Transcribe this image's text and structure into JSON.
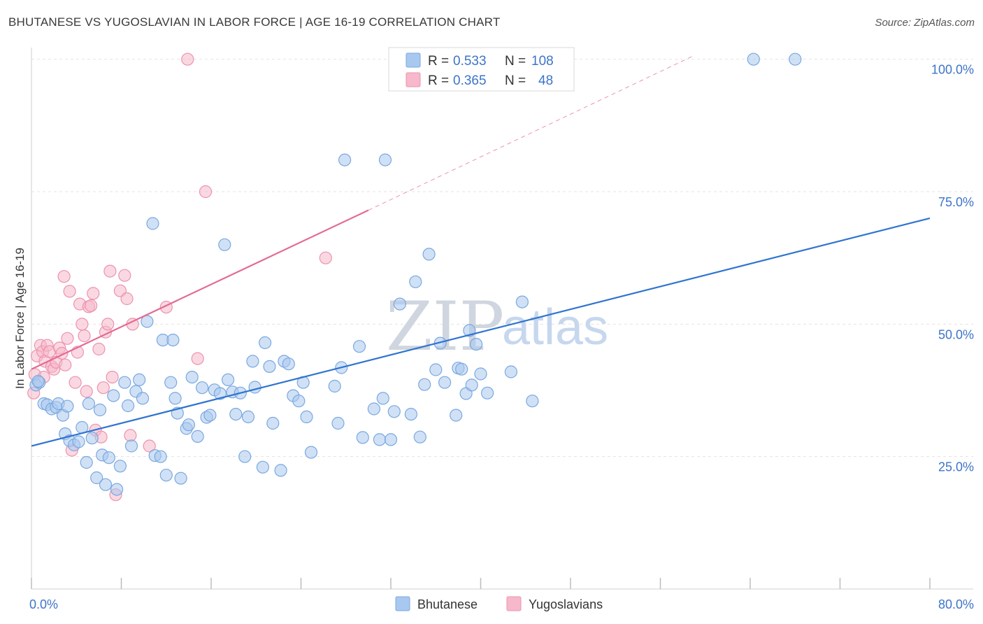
{
  "header": {
    "title": "BHUTANESE VS YUGOSLAVIAN IN LABOR FORCE | AGE 16-19 CORRELATION CHART",
    "source": "Source: ZipAtlas.com"
  },
  "watermark": {
    "zip": "ZIP",
    "atlas": "atlas"
  },
  "colors": {
    "blue_fill": "#a9c8ef",
    "blue_stroke": "#7aa8e0",
    "blue_line": "#2f74d0",
    "pink_fill": "#f6b8ca",
    "pink_stroke": "#ec93ad",
    "pink_line": "#e46b91",
    "tick_text": "#3d74c8",
    "grid": "#e3e3e3"
  },
  "legend": {
    "rows": [
      {
        "series": "Bhutanese",
        "r_label": "R =",
        "r_value": "0.533",
        "n_label": "N =",
        "n_value": "108"
      },
      {
        "series": "Yugoslavians",
        "r_label": "R =",
        "r_value": "0.365",
        "n_label": "N =",
        "n_value": "48"
      }
    ]
  },
  "chart_data": {
    "type": "scatter",
    "title": "BHUTANESE VS YUGOSLAVIAN IN LABOR FORCE | AGE 16-19 CORRELATION CHART",
    "xlabel": "",
    "ylabel": "In Labor Force | Age 16-19",
    "xlim": [
      0,
      80
    ],
    "ylim": [
      0,
      103
    ],
    "x_tick_labels": [
      {
        "value": 0,
        "label": "0.0%"
      },
      {
        "value": 80,
        "label": "80.0%"
      }
    ],
    "y_tick_labels": [
      {
        "value": 25,
        "label": "25.0%"
      },
      {
        "value": 50,
        "label": "50.0%"
      },
      {
        "value": 75,
        "label": "75.0%"
      },
      {
        "value": 100,
        "label": "100.0%"
      }
    ],
    "x_ticks": [
      0,
      8,
      16,
      24,
      32,
      40,
      48,
      56,
      64,
      72,
      80
    ],
    "y_grid": [
      25,
      50,
      75,
      100
    ],
    "legend_position": "bottom-center",
    "series": [
      {
        "name": "Bhutanese",
        "color": "#a9c8ef",
        "r": 0.533,
        "n": 108,
        "trend": {
          "x0": 0,
          "y0": 27,
          "x1": 80,
          "y1": 70
        },
        "points": [
          [
            0.4,
            38.5
          ],
          [
            0.7,
            39.0
          ],
          [
            1.1,
            35.0
          ],
          [
            1.4,
            34.8
          ],
          [
            1.8,
            34.0
          ],
          [
            2.2,
            34.3
          ],
          [
            2.4,
            35.0
          ],
          [
            2.8,
            32.8
          ],
          [
            3.0,
            29.3
          ],
          [
            3.4,
            28.0
          ],
          [
            3.8,
            27.2
          ],
          [
            4.2,
            27.8
          ],
          [
            4.5,
            30.5
          ],
          [
            4.9,
            23.9
          ],
          [
            5.1,
            35.0
          ],
          [
            5.4,
            28.5
          ],
          [
            5.8,
            21.0
          ],
          [
            6.1,
            33.8
          ],
          [
            6.3,
            25.3
          ],
          [
            6.6,
            19.7
          ],
          [
            6.9,
            24.8
          ],
          [
            7.3,
            36.5
          ],
          [
            7.6,
            18.8
          ],
          [
            7.9,
            23.2
          ],
          [
            8.3,
            39.0
          ],
          [
            8.6,
            34.6
          ],
          [
            8.9,
            27.0
          ],
          [
            9.3,
            37.3
          ],
          [
            9.6,
            39.5
          ],
          [
            9.9,
            36.0
          ],
          [
            10.3,
            50.5
          ],
          [
            10.8,
            69.0
          ],
          [
            11.0,
            25.2
          ],
          [
            11.5,
            25.0
          ],
          [
            11.7,
            47.0
          ],
          [
            12.0,
            21.5
          ],
          [
            12.4,
            39.0
          ],
          [
            12.8,
            36.0
          ],
          [
            13.0,
            33.2
          ],
          [
            13.3,
            20.9
          ],
          [
            13.8,
            30.3
          ],
          [
            14.0,
            31.0
          ],
          [
            14.3,
            40.0
          ],
          [
            14.8,
            28.8
          ],
          [
            15.2,
            38.0
          ],
          [
            15.6,
            32.4
          ],
          [
            15.9,
            32.8
          ],
          [
            16.3,
            37.6
          ],
          [
            16.8,
            36.9
          ],
          [
            17.2,
            65.0
          ],
          [
            17.5,
            39.5
          ],
          [
            17.9,
            37.2
          ],
          [
            18.2,
            33.0
          ],
          [
            18.6,
            37.0
          ],
          [
            19.0,
            25.0
          ],
          [
            19.3,
            32.5
          ],
          [
            19.7,
            43.0
          ],
          [
            19.9,
            38.1
          ],
          [
            20.6,
            23.0
          ],
          [
            20.8,
            46.5
          ],
          [
            21.2,
            42.0
          ],
          [
            21.5,
            31.3
          ],
          [
            22.2,
            22.4
          ],
          [
            22.5,
            43.0
          ],
          [
            22.9,
            42.5
          ],
          [
            23.3,
            36.5
          ],
          [
            23.8,
            35.5
          ],
          [
            24.2,
            39.0
          ],
          [
            24.5,
            32.5
          ],
          [
            24.9,
            25.8
          ],
          [
            27.0,
            38.3
          ],
          [
            27.3,
            31.3
          ],
          [
            27.6,
            41.8
          ],
          [
            27.9,
            81.0
          ],
          [
            29.2,
            45.8
          ],
          [
            29.5,
            28.6
          ],
          [
            30.5,
            34.0
          ],
          [
            31.0,
            28.2
          ],
          [
            31.3,
            36.0
          ],
          [
            31.5,
            81.0
          ],
          [
            32.0,
            28.2
          ],
          [
            32.3,
            33.5
          ],
          [
            32.8,
            53.8
          ],
          [
            33.8,
            33.0
          ],
          [
            34.2,
            58.0
          ],
          [
            34.6,
            28.7
          ],
          [
            35.0,
            38.6
          ],
          [
            35.4,
            63.2
          ],
          [
            36.0,
            41.4
          ],
          [
            36.4,
            46.4
          ],
          [
            36.8,
            39.0
          ],
          [
            37.8,
            32.8
          ],
          [
            38.0,
            41.7
          ],
          [
            38.3,
            41.5
          ],
          [
            38.7,
            36.9
          ],
          [
            39.0,
            48.8
          ],
          [
            39.2,
            38.5
          ],
          [
            39.6,
            46.2
          ],
          [
            40.0,
            40.6
          ],
          [
            40.6,
            37.0
          ],
          [
            42.7,
            41.0
          ],
          [
            43.7,
            54.2
          ],
          [
            44.6,
            35.5
          ],
          [
            64.3,
            100.0
          ],
          [
            68.0,
            100.0
          ],
          [
            0.6,
            39.2
          ],
          [
            3.2,
            34.5
          ],
          [
            12.6,
            47.0
          ]
        ]
      },
      {
        "name": "Yugoslavians",
        "color": "#f6b8ca",
        "r": 0.365,
        "n": 48,
        "trend": {
          "x0": 0,
          "y0": 41.5,
          "x1": 30,
          "y1": 71.5
        },
        "trend_ext": {
          "x0": 30,
          "y0": 71.5,
          "x1": 58.8,
          "y1": 100.5
        },
        "points": [
          [
            0.3,
            40.5
          ],
          [
            0.5,
            44.0
          ],
          [
            0.8,
            46.0
          ],
          [
            1.0,
            44.8
          ],
          [
            1.2,
            43.0
          ],
          [
            1.4,
            46.0
          ],
          [
            1.6,
            44.8
          ],
          [
            1.8,
            42.0
          ],
          [
            2.0,
            41.5
          ],
          [
            2.2,
            42.8
          ],
          [
            2.5,
            45.5
          ],
          [
            2.7,
            44.5
          ],
          [
            3.0,
            42.3
          ],
          [
            3.2,
            47.3
          ],
          [
            3.4,
            56.2
          ],
          [
            3.6,
            26.2
          ],
          [
            3.9,
            39.0
          ],
          [
            4.1,
            44.7
          ],
          [
            4.3,
            53.8
          ],
          [
            4.5,
            50.0
          ],
          [
            4.7,
            47.8
          ],
          [
            4.9,
            37.3
          ],
          [
            5.1,
            53.3
          ],
          [
            5.3,
            53.5
          ],
          [
            5.5,
            55.8
          ],
          [
            5.7,
            30.0
          ],
          [
            6.0,
            45.3
          ],
          [
            6.2,
            28.7
          ],
          [
            6.4,
            38.0
          ],
          [
            6.6,
            48.5
          ],
          [
            6.8,
            50.0
          ],
          [
            7.0,
            60.0
          ],
          [
            7.2,
            40.0
          ],
          [
            7.5,
            17.8
          ],
          [
            7.9,
            56.3
          ],
          [
            8.3,
            59.2
          ],
          [
            8.5,
            54.8
          ],
          [
            8.8,
            29.0
          ],
          [
            9.0,
            50.0
          ],
          [
            10.5,
            27.0
          ],
          [
            12.0,
            53.2
          ],
          [
            14.8,
            43.5
          ],
          [
            15.5,
            75.0
          ],
          [
            13.9,
            100.0
          ],
          [
            26.2,
            62.5
          ],
          [
            2.9,
            59.0
          ],
          [
            0.2,
            37.0
          ],
          [
            1.1,
            40.0
          ]
        ]
      }
    ]
  }
}
